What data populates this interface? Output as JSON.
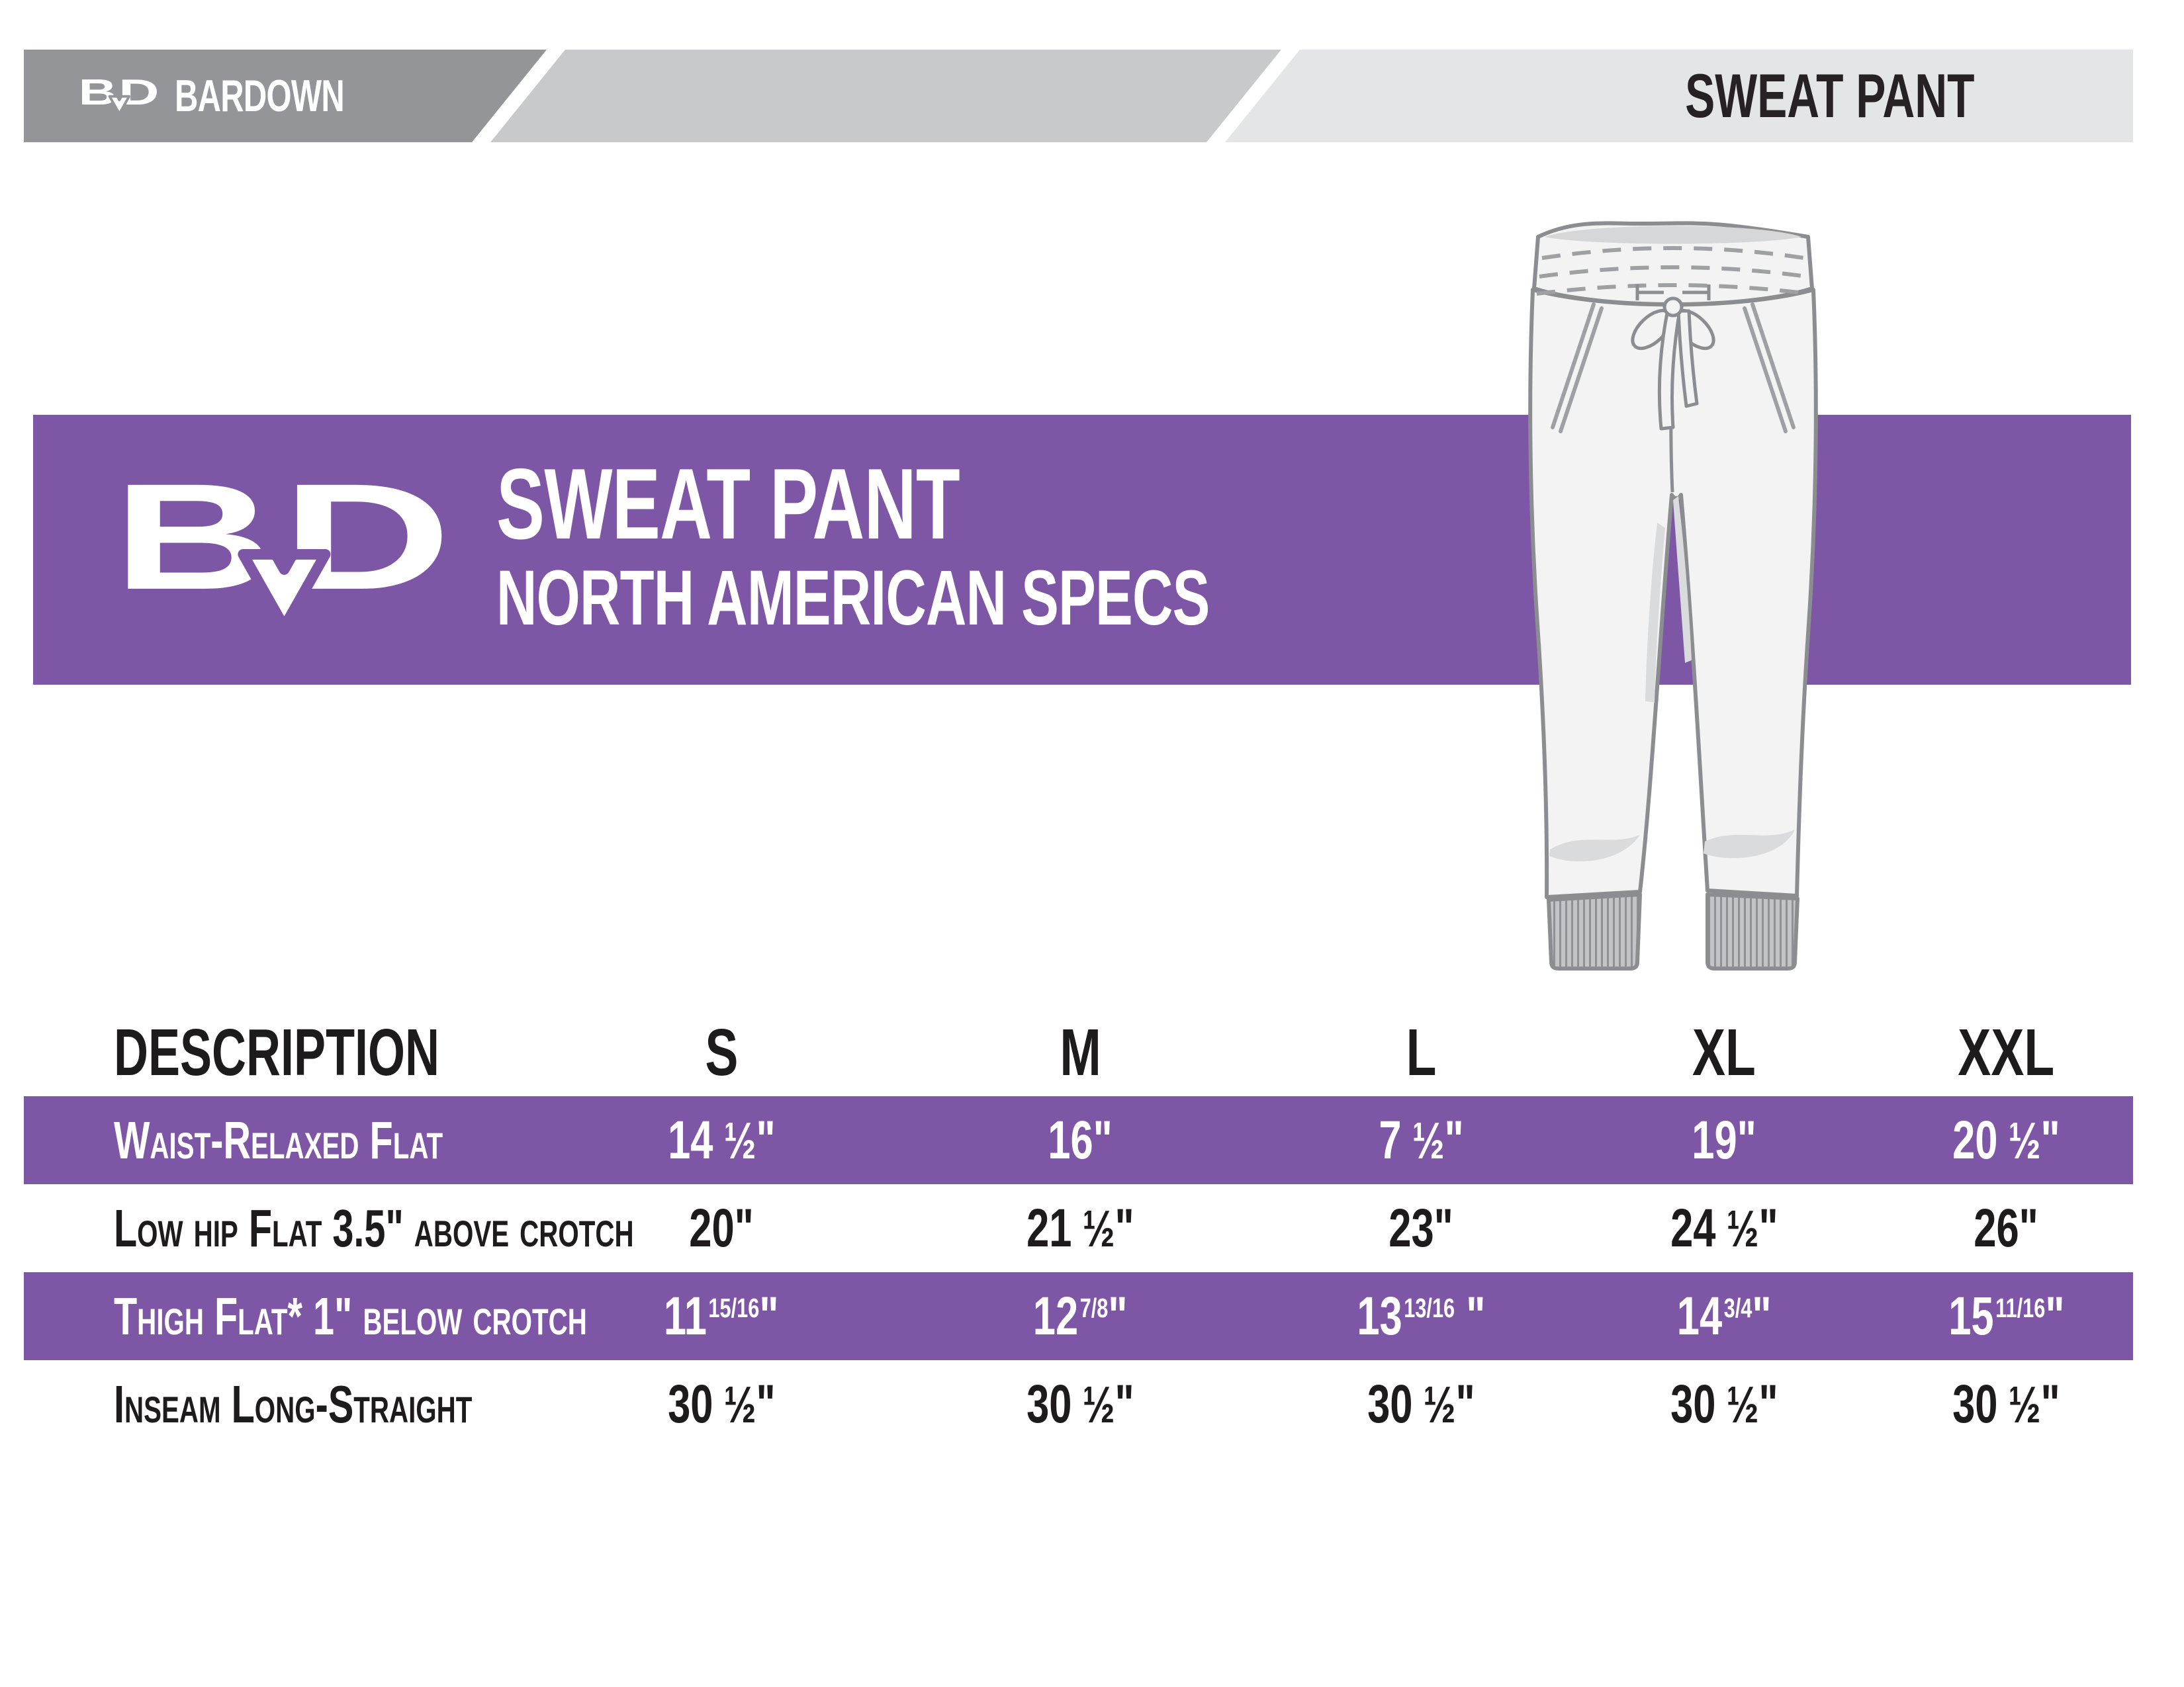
{
  "header_bar": {
    "brand": "BARDOWN",
    "product_label": "SWEAT PANT",
    "colors": {
      "dark": "#939598",
      "mid": "#c8c9cb",
      "light": "#e4e5e6",
      "text": "#262224"
    }
  },
  "banner": {
    "logo_text": "BD",
    "title": "SWEAT PANT",
    "subtitle": "NORTH AMERICAN SPECS",
    "bg": "#7e56a6"
  },
  "illustration": {
    "name": "sweat-pant-technical-drawing"
  },
  "size_table": {
    "highlight_color": "#7e56a6",
    "header": [
      "DESCRIPTION",
      "S",
      "M",
      "L",
      "XL",
      "XXL"
    ],
    "rows": [
      {
        "label": "Waist-Relaxed Flat",
        "highlight": true,
        "values": [
          {
            "whole": "14",
            "frac": "1/2",
            "fracStyle": "half",
            "suffix": "\""
          },
          {
            "whole": "16",
            "suffix": "\""
          },
          {
            "whole": "7",
            "frac": "1/2",
            "fracStyle": "half",
            "suffix": "\""
          },
          {
            "whole": "19",
            "suffix": "\""
          },
          {
            "whole": "20",
            "frac": "1/2",
            "fracStyle": "half",
            "suffix": "\""
          }
        ]
      },
      {
        "label": "Low hip Flat 3.5\" above crotch",
        "highlight": false,
        "values": [
          {
            "whole": "20",
            "suffix": "\""
          },
          {
            "whole": "21",
            "frac": "1/2",
            "fracStyle": "half",
            "suffix": "\""
          },
          {
            "whole": "23",
            "suffix": "\""
          },
          {
            "whole": "24",
            "frac": "1/2",
            "fracStyle": "half",
            "suffix": "\""
          },
          {
            "whole": "26",
            "suffix": "\""
          }
        ]
      },
      {
        "label": "Thigh Flat* 1\" below crotch",
        "highlight": true,
        "values": [
          {
            "whole": "11",
            "frac": "15/16",
            "fracStyle": "sup",
            "suffix": "\""
          },
          {
            "whole": "12",
            "frac": "7/8",
            "fracStyle": "sup",
            "suffix": "\""
          },
          {
            "whole": "13",
            "frac": "13/16",
            "fracStyle": "sup",
            "suffix": " \""
          },
          {
            "whole": "14",
            "frac": "3/4",
            "fracStyle": "sup",
            "suffix": "\""
          },
          {
            "whole": "15",
            "frac": "11/16",
            "fracStyle": "sup",
            "suffix": "\""
          }
        ]
      },
      {
        "label": "Inseam Long-Straight",
        "highlight": false,
        "values": [
          {
            "whole": "30",
            "frac": "1/2",
            "fracStyle": "half",
            "suffix": "\""
          },
          {
            "whole": "30",
            "frac": "1/2",
            "fracStyle": "half",
            "suffix": "\""
          },
          {
            "whole": "30",
            "frac": "1/2",
            "fracStyle": "half",
            "suffix": "\""
          },
          {
            "whole": "30",
            "frac": "1/2",
            "fracStyle": "half",
            "suffix": "\""
          },
          {
            "whole": "30",
            "frac": "1/2",
            "fracStyle": "half",
            "suffix": "\""
          }
        ]
      }
    ]
  },
  "chart_data": {
    "type": "table",
    "columns": [
      "DESCRIPTION",
      "S",
      "M",
      "L",
      "XL",
      "XXL"
    ],
    "rows": [
      [
        "Waist-Relaxed Flat",
        "14 1/2\"",
        "16\"",
        "7 1/2\"",
        "19\"",
        "20 1/2\""
      ],
      [
        "Low hip Flat 3.5\" above crotch",
        "20\"",
        "21 1/2\"",
        "23\"",
        "24 1/2\"",
        "26\""
      ],
      [
        "Thigh Flat* 1\" below crotch",
        "11 15/16\"",
        "12 7/8\"",
        "13 13/16 \"",
        "14 3/4\"",
        "15 11/16\""
      ],
      [
        "Inseam Long-Straight",
        "30 1/2\"",
        "30 1/2\"",
        "30 1/2\"",
        "30 1/2\"",
        "30 1/2\""
      ]
    ]
  }
}
